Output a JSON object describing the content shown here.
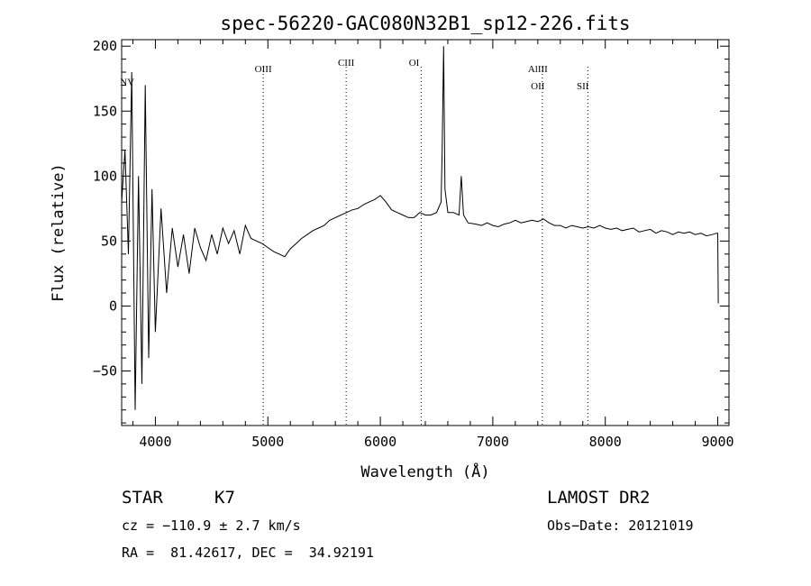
{
  "chart_data": {
    "type": "line",
    "title": "spec-56220-GAC080N32B1_sp12-226.fits",
    "xlabel": "Wavelength (Å)",
    "ylabel": "Flux (relative)",
    "xlim": [
      3700,
      9100
    ],
    "ylim": [
      -92,
      205
    ],
    "xticks": [
      4000,
      5000,
      6000,
      7000,
      8000,
      9000
    ],
    "yticks": [
      -50,
      0,
      50,
      100,
      150,
      200
    ],
    "tick_labels_x": [
      "4000",
      "5000",
      "6000",
      "7000",
      "8000",
      "9000"
    ],
    "tick_labels_y": [
      "−50",
      "0",
      "50",
      "100",
      "150",
      "200"
    ],
    "grid": false,
    "series": [
      {
        "x": [
          3700,
          3730,
          3760,
          3790,
          3820,
          3850,
          3880,
          3910,
          3940,
          3970,
          4000,
          4050,
          4100,
          4150,
          4200,
          4250,
          4300,
          4350,
          4400,
          4450,
          4500,
          4550,
          4600,
          4650,
          4700,
          4750,
          4800,
          4850,
          4900,
          4950,
          5000,
          5050,
          5100,
          5150,
          5200,
          5250,
          5300,
          5350,
          5400,
          5450,
          5500,
          5550,
          5600,
          5650,
          5700,
          5750,
          5800,
          5850,
          5900,
          5950,
          6000,
          6050,
          6100,
          6150,
          6200,
          6250,
          6300,
          6350,
          6400,
          6450,
          6500,
          6540,
          6550,
          6563,
          6575,
          6600,
          6650,
          6700,
          6720,
          6740,
          6780,
          6850,
          6900,
          6950,
          7000,
          7050,
          7100,
          7150,
          7200,
          7250,
          7300,
          7350,
          7400,
          7450,
          7500,
          7550,
          7600,
          7650,
          7700,
          7750,
          7800,
          7850,
          7900,
          7950,
          8000,
          8050,
          8100,
          8150,
          8200,
          8250,
          8300,
          8350,
          8400,
          8450,
          8500,
          8550,
          8600,
          8650,
          8700,
          8750,
          8800,
          8850,
          8900,
          8950,
          8990,
          9000,
          9005
        ],
        "y": [
          80,
          120,
          40,
          180,
          -80,
          100,
          -60,
          170,
          -40,
          90,
          -20,
          75,
          10,
          60,
          30,
          55,
          25,
          60,
          45,
          35,
          55,
          40,
          60,
          48,
          58,
          40,
          62,
          52,
          50,
          48,
          45,
          42,
          40,
          38,
          44,
          48,
          52,
          55,
          58,
          60,
          62,
          66,
          68,
          70,
          72,
          74,
          75,
          78,
          80,
          82,
          85,
          80,
          74,
          72,
          70,
          68,
          68,
          72,
          70,
          70,
          72,
          80,
          120,
          200,
          90,
          72,
          72,
          70,
          100,
          70,
          64,
          63,
          62,
          64,
          62,
          61,
          63,
          64,
          66,
          64,
          65,
          66,
          65,
          67,
          64,
          62,
          62,
          60,
          62,
          61,
          60,
          61,
          60,
          62,
          60,
          59,
          60,
          58,
          59,
          60,
          57,
          58,
          59,
          56,
          58,
          57,
          55,
          57,
          56,
          57,
          55,
          56,
          54,
          55,
          56,
          56,
          2
        ]
      }
    ],
    "annotations": [
      {
        "label": "NV",
        "x": 3750,
        "y": 170
      },
      {
        "label": "OIII",
        "x": 4959,
        "y": 180
      },
      {
        "label": "CIII",
        "x": 5696,
        "y": 185
      },
      {
        "label": "OI",
        "x": 6300,
        "y": 185
      },
      {
        "label": "AlIII",
        "x": 7400,
        "y": 180
      },
      {
        "label": "OII",
        "x": 7400,
        "y": 167
      },
      {
        "label": "SII",
        "x": 7800,
        "y": 167
      }
    ],
    "line_markers": [
      4959,
      5696,
      6363,
      7440,
      7845
    ]
  },
  "footer": {
    "object_class": "STAR",
    "subclass": "K7",
    "survey": "LAMOST DR2",
    "cz": "cz = −110.9 ± 2.7 km/s",
    "obs_date": "Obs−Date: 20121019",
    "coords": "RA =  81.42617, DEC =  34.92191"
  }
}
